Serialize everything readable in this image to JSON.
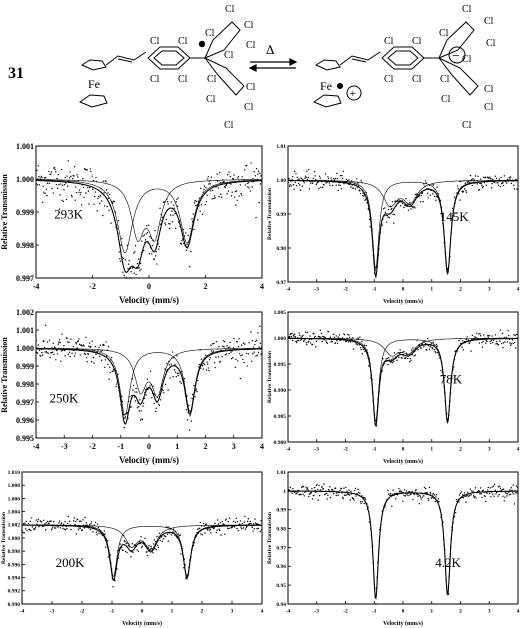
{
  "scheme": {
    "compound_number": "31",
    "arrow_label": "Δ",
    "metal_label": "Fe",
    "chlorine_label": "Cl",
    "minus_sign": "−",
    "plus_sign": "+"
  },
  "chart_data": [
    {
      "type": "scatter",
      "temperature_label": "293K",
      "xlabel": "Velocity (mm/s)",
      "ylabel": "Relative Transmission",
      "xlim": [
        -4,
        4
      ],
      "ylim": [
        0.997,
        1.001
      ],
      "x_ticks": [
        -4,
        -2,
        0,
        2,
        4
      ],
      "x_tick_labels": [
        "-4",
        "-2",
        "0",
        "2",
        "4"
      ],
      "y_ticks": [
        0.997,
        0.998,
        0.999,
        1.0,
        1.001
      ],
      "y_tick_labels": [
        "0.997",
        "0.998",
        "0.999",
        "1.000",
        "1.001"
      ],
      "baseline": 1.0,
      "noise": 0.00032,
      "peaks": [
        {
          "center": -0.85,
          "depth": 0.0022,
          "width": 0.32
        },
        {
          "center": -0.4,
          "depth": 0.0016,
          "width": 0.28
        },
        {
          "center": 0.2,
          "depth": 0.0016,
          "width": 0.28
        },
        {
          "center": 1.35,
          "depth": 0.0019,
          "width": 0.3
        }
      ]
    },
    {
      "type": "scatter",
      "temperature_label": "145K",
      "xlabel": "Velocity (mm/s)",
      "ylabel": "Relative Transmission",
      "xlim": [
        -4,
        4
      ],
      "ylim": [
        0.97,
        1.01
      ],
      "x_ticks": [
        -4,
        -3,
        -2,
        -1,
        0,
        1,
        2,
        3,
        4
      ],
      "x_tick_labels": [
        "-4",
        "-3",
        "-2",
        "-1",
        "0",
        "1",
        "2",
        "3",
        "4"
      ],
      "y_ticks": [
        0.97,
        0.98,
        0.99,
        1.0,
        1.01
      ],
      "y_tick_labels": [
        "0.97",
        "0.98",
        "0.99",
        "1.00",
        "1.01"
      ],
      "baseline": 1.0,
      "noise": 0.0012,
      "peaks": [
        {
          "center": -0.95,
          "depth": 0.026,
          "width": 0.14
        },
        {
          "center": -0.45,
          "depth": 0.007,
          "width": 0.3
        },
        {
          "center": 0.25,
          "depth": 0.006,
          "width": 0.3
        },
        {
          "center": 1.55,
          "depth": 0.027,
          "width": 0.14
        }
      ]
    },
    {
      "type": "scatter",
      "temperature_label": "250K",
      "xlabel": "Velocity (mm/s)",
      "ylabel": "Relative Transmission",
      "xlim": [
        -4,
        4
      ],
      "ylim": [
        0.995,
        1.002
      ],
      "x_ticks": [
        -4,
        -3,
        -2,
        -1,
        0,
        1,
        2,
        3,
        4
      ],
      "x_tick_labels": [
        "-4",
        "-3",
        "-2",
        "-1",
        "0",
        "1",
        "2",
        "3",
        "4"
      ],
      "y_ticks": [
        0.995,
        0.996,
        0.997,
        0.998,
        0.999,
        1.0,
        1.001,
        1.002
      ],
      "y_tick_labels": [
        "0.995",
        "0.996",
        "0.997",
        "0.998",
        "0.999",
        "1.000",
        "1.001",
        "1.002"
      ],
      "baseline": 1.0,
      "noise": 0.0004,
      "peaks": [
        {
          "center": -0.85,
          "depth": 0.0037,
          "width": 0.22
        },
        {
          "center": -0.3,
          "depth": 0.0022,
          "width": 0.25
        },
        {
          "center": 0.3,
          "depth": 0.0024,
          "width": 0.25
        },
        {
          "center": 1.45,
          "depth": 0.0035,
          "width": 0.22
        }
      ]
    },
    {
      "type": "scatter",
      "temperature_label": "78K",
      "xlabel": "Velocity (mm/s)",
      "ylabel": "Relative Transmission",
      "xlim": [
        -4,
        4
      ],
      "ylim": [
        0.98,
        1.005
      ],
      "x_ticks": [
        -4,
        -3,
        -2,
        -1,
        0,
        1,
        2,
        3,
        4
      ],
      "x_tick_labels": [
        "-4",
        "-3",
        "-2",
        "-1",
        "0",
        "1",
        "2",
        "3",
        "4"
      ],
      "y_ticks": [
        0.98,
        0.985,
        0.99,
        0.995,
        1.0,
        1.005
      ],
      "y_tick_labels": [
        "0.980",
        "0.985",
        "0.990",
        "0.995",
        "1.000",
        "1.005"
      ],
      "baseline": 1.0,
      "noise": 0.0007,
      "peaks": [
        {
          "center": -0.95,
          "depth": 0.016,
          "width": 0.13
        },
        {
          "center": -0.4,
          "depth": 0.003,
          "width": 0.3
        },
        {
          "center": 0.2,
          "depth": 0.0025,
          "width": 0.3
        },
        {
          "center": 1.55,
          "depth": 0.016,
          "width": 0.13
        }
      ]
    },
    {
      "type": "scatter",
      "temperature_label": "200K",
      "xlabel": "Velocity (mm/s)",
      "ylabel": "Relative Transmission",
      "xlim": [
        -4,
        4
      ],
      "ylim": [
        0.99,
        1.01
      ],
      "x_ticks": [
        -4,
        -3,
        -2,
        -1,
        0,
        1,
        2,
        3,
        4
      ],
      "x_tick_labels": [
        "-4",
        "-3",
        "-2",
        "-1",
        "0",
        "1",
        "2",
        "3",
        "4"
      ],
      "y_ticks": [
        0.99,
        0.992,
        0.994,
        0.996,
        0.998,
        1.0,
        1.002,
        1.004,
        1.006,
        1.008,
        1.01
      ],
      "y_tick_labels": [
        "0.990",
        "0.992",
        "0.994",
        "0.996",
        "0.998",
        "1.000",
        "1.002",
        "1.004",
        "1.006",
        "1.008",
        "1.010"
      ],
      "baseline": 1.002,
      "noise": 0.0006,
      "peaks": [
        {
          "center": -0.95,
          "depth": 0.0078,
          "width": 0.15
        },
        {
          "center": -0.35,
          "depth": 0.003,
          "width": 0.25
        },
        {
          "center": 0.3,
          "depth": 0.0035,
          "width": 0.25
        },
        {
          "center": 1.5,
          "depth": 0.0078,
          "width": 0.15
        }
      ]
    },
    {
      "type": "scatter",
      "temperature_label": "4.2K",
      "xlabel": "Velocity (mm/s)",
      "ylabel": "Relative Transmission",
      "xlim": [
        -4,
        4
      ],
      "ylim": [
        0.94,
        1.01
      ],
      "x_ticks": [
        -4,
        -3,
        -2,
        -1,
        0,
        1,
        2,
        3,
        4
      ],
      "x_tick_labels": [
        "-4",
        "-3",
        "-2",
        "-1",
        "0",
        "1",
        "2",
        "3",
        "4"
      ],
      "y_ticks": [
        0.94,
        0.95,
        0.96,
        0.97,
        0.98,
        0.99,
        1.0,
        1.01
      ],
      "y_tick_labels": [
        "0.94",
        "0.95",
        "0.96",
        "0.97",
        "0.98",
        "0.99",
        "1",
        "1.01"
      ],
      "baseline": 1.0,
      "noise": 0.0018,
      "peaks": [
        {
          "center": -0.95,
          "depth": 0.057,
          "width": 0.12
        },
        {
          "center": 1.55,
          "depth": 0.055,
          "width": 0.12
        }
      ]
    }
  ]
}
